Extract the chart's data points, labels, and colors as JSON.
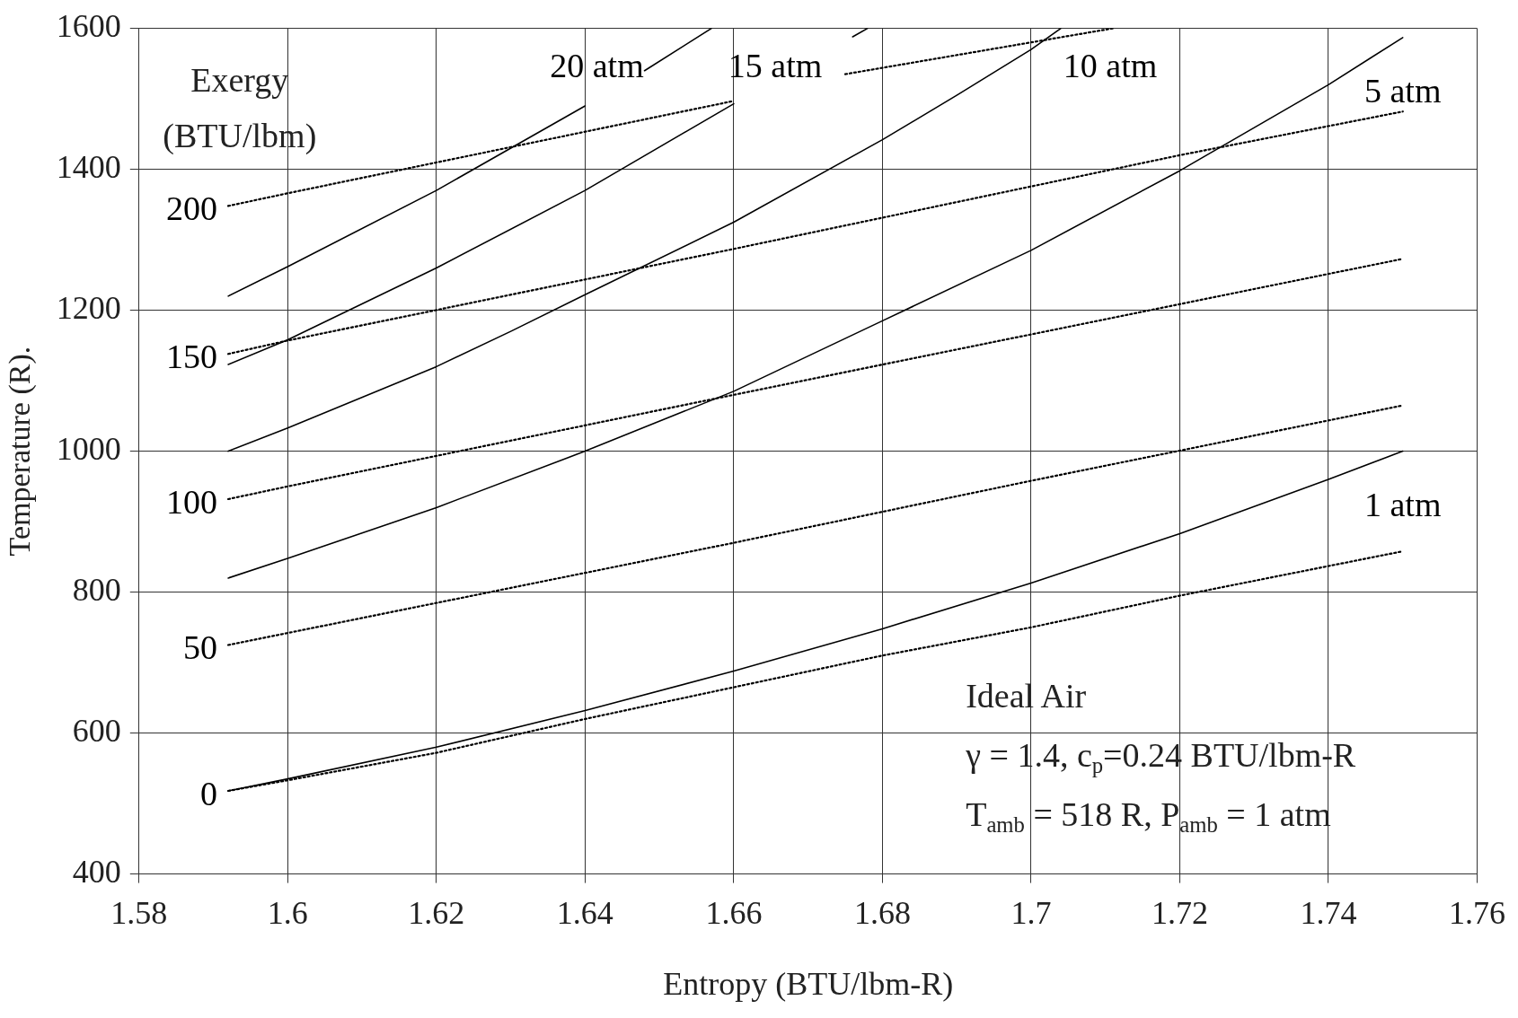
{
  "chart_data": {
    "type": "line",
    "xlabel": "Entropy (BTU/lbm-R)",
    "ylabel": "Temperature (R).",
    "xlim": [
      1.58,
      1.76
    ],
    "xticks": [
      1.58,
      1.6,
      1.62,
      1.64,
      1.66,
      1.68,
      1.7,
      1.72,
      1.74,
      1.76
    ],
    "ylim": [
      400,
      1600
    ],
    "yticks": [
      400,
      600,
      800,
      1000,
      1200,
      1400,
      1600
    ],
    "grid": true,
    "legend": false,
    "marker": "none",
    "series": [
      {
        "name": "1 atm",
        "color": "#000000",
        "line_style": "solid",
        "x": [
          1.592,
          1.6,
          1.62,
          1.64,
          1.66,
          1.68,
          1.7,
          1.72,
          1.74,
          1.75
        ],
        "values": [
          518,
          535,
          580,
          632,
          688,
          748,
          813,
          883,
          960,
          1000
        ]
      },
      {
        "name": "5 atm",
        "color": "#000000",
        "line_style": "solid",
        "x": [
          1.592,
          1.6,
          1.62,
          1.64,
          1.66,
          1.68,
          1.7,
          1.72,
          1.74,
          1.75
        ],
        "values": [
          820,
          848,
          920,
          1000,
          1085,
          1185,
          1285,
          1398,
          1520,
          1587
        ]
      },
      {
        "name": "10 atm",
        "color": "#000000",
        "line_style": "solid",
        "x": [
          1.592,
          1.6,
          1.62,
          1.63,
          1.64,
          1.66,
          1.68,
          1.69,
          1.7,
          1.704
        ],
        "values": [
          1000,
          1033,
          1120,
          1170,
          1222,
          1325,
          1442,
          1505,
          1570,
          1600
        ]
      },
      {
        "name": "15 atm",
        "color": "#000000",
        "line_style": "solid",
        "x": [
          1.592,
          1.6,
          1.62,
          1.64,
          1.66,
          1.668,
          1.676,
          1.678
        ],
        "values": [
          1123,
          1158,
          1260,
          1370,
          1493,
          null,
          1588,
          1600
        ]
      },
      {
        "name": "20 atm",
        "color": "#000000",
        "line_style": "solid",
        "x": [
          1.592,
          1.6,
          1.62,
          1.64,
          1.644,
          1.648,
          1.657
        ],
        "values": [
          1220,
          1262,
          1370,
          1490,
          null,
          1540,
          1600
        ]
      },
      {
        "name": "0",
        "color": "#000000",
        "line_style": "dotted",
        "x": [
          1.592,
          1.6,
          1.62,
          1.64,
          1.66,
          1.68,
          1.7,
          1.72,
          1.75
        ],
        "values": [
          518,
          533,
          572,
          620,
          665,
          710,
          750,
          795,
          858
        ]
      },
      {
        "name": "50",
        "color": "#000000",
        "line_style": "dotted",
        "x": [
          1.592,
          1.6,
          1.66,
          1.7,
          1.75
        ],
        "values": [
          725,
          742,
          870,
          958,
          1065
        ]
      },
      {
        "name": "100",
        "color": "#000000",
        "line_style": "dotted",
        "x": [
          1.592,
          1.6,
          1.66,
          1.75
        ],
        "values": [
          932,
          950,
          1080,
          1273
        ]
      },
      {
        "name": "150",
        "color": "#000000",
        "line_style": "dotted",
        "x": [
          1.592,
          1.6,
          1.66,
          1.72,
          1.75
        ],
        "values": [
          1138,
          1157,
          1287,
          1420,
          1482
        ]
      },
      {
        "name": "200",
        "color": "#000000",
        "line_style": "dotted",
        "x": [
          1.592,
          1.6,
          1.66,
          1.668,
          1.675,
          1.711
        ],
        "values": [
          1348,
          1366,
          1497,
          null,
          1535,
          1600
        ]
      }
    ],
    "legend_title": "Exergy (BTU/lbm)",
    "annotations": [
      "Ideal Air",
      "γ = 1.4, c$_{p}$=0.24 BTU/lbm-R",
      "T$_{amb}$ = 518 R, P$_{amb}$ = 1 atm"
    ]
  }
}
